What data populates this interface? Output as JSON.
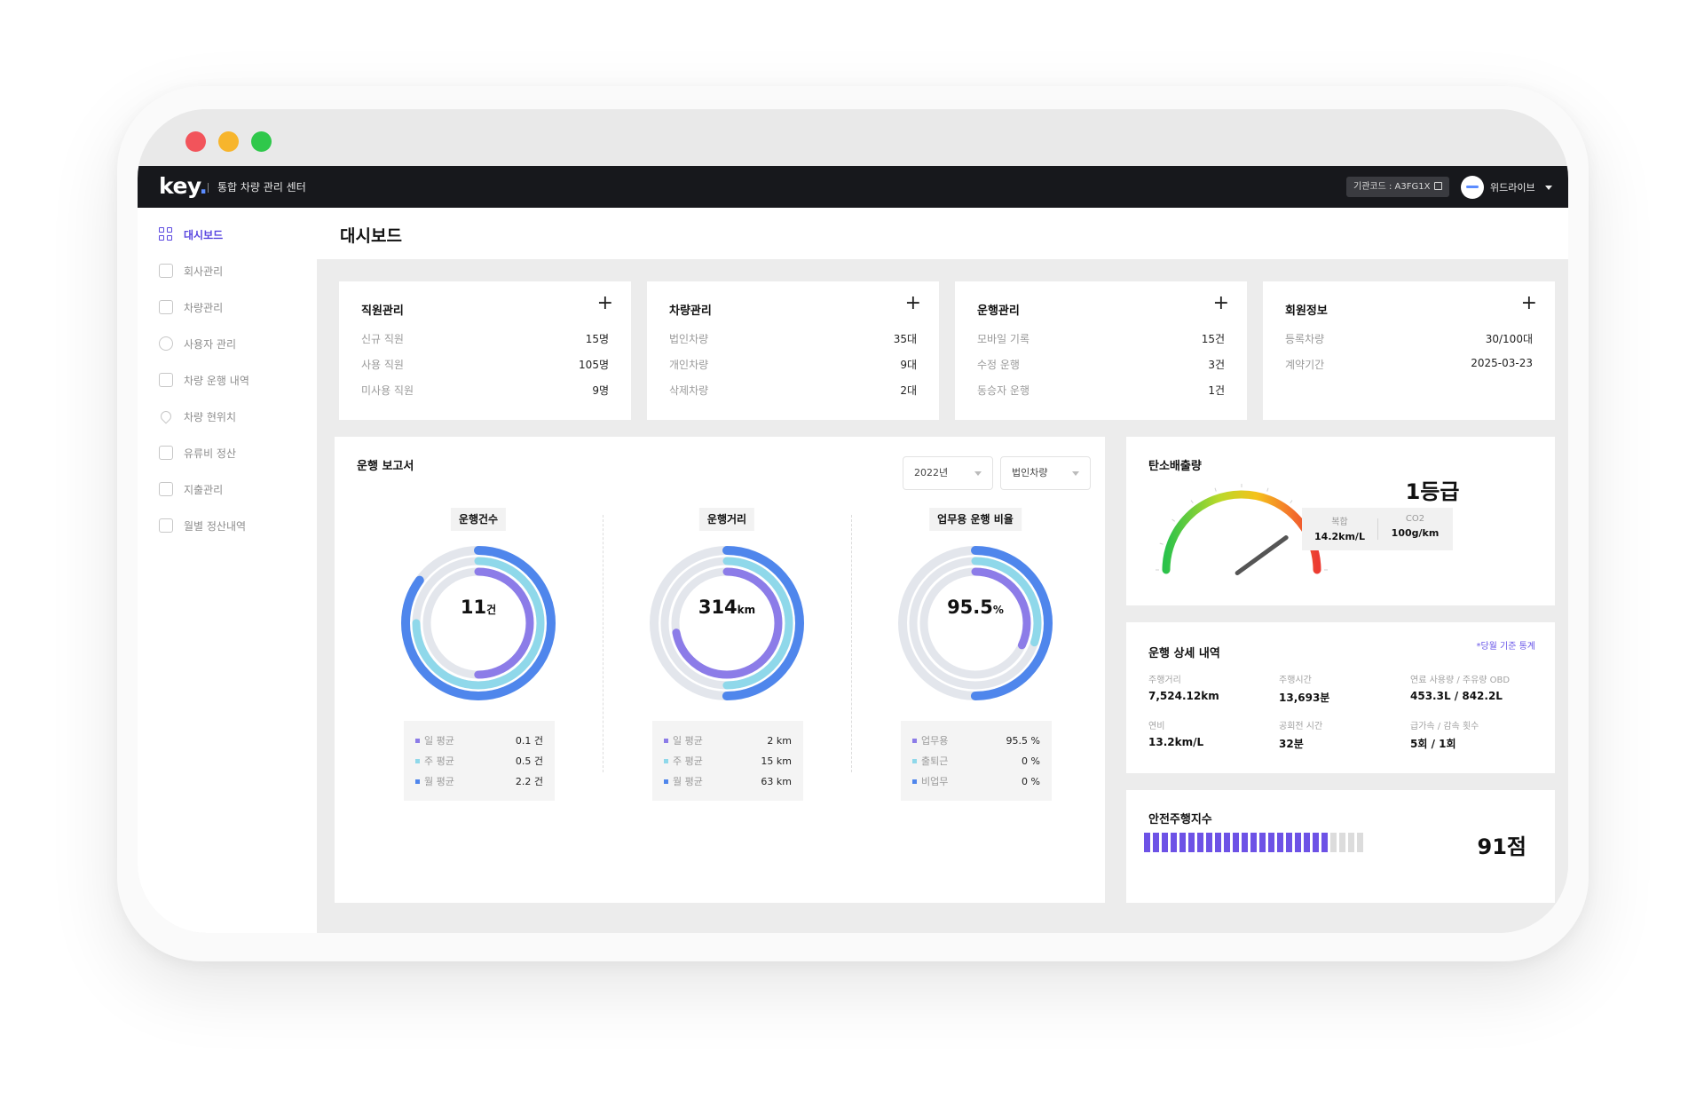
{
  "app": {
    "logo": "key",
    "title": "통합 차량 관리 센터",
    "org_code": "기관코드 : A3FG1X",
    "user_name": "위드라이브"
  },
  "sidebar": {
    "items": [
      {
        "label": "대시보드",
        "icon": "dashboard-icon",
        "active": true
      },
      {
        "label": "회사관리",
        "icon": "building-icon"
      },
      {
        "label": "차량관리",
        "icon": "car-icon"
      },
      {
        "label": "사용자 관리",
        "icon": "users-icon"
      },
      {
        "label": "차량 운행 내역",
        "icon": "clipboard-icon"
      },
      {
        "label": "차량 현위치",
        "icon": "location-pin-icon"
      },
      {
        "label": "유류비 정산",
        "icon": "fuel-icon"
      },
      {
        "label": "지출관리",
        "icon": "receipt-icon"
      },
      {
        "label": "월별 정산내역",
        "icon": "calendar-icon"
      }
    ]
  },
  "page": {
    "title": "대시보드"
  },
  "stat_cards": [
    {
      "title": "직원관리",
      "rows": [
        {
          "k": "신규 직원",
          "v": "15명"
        },
        {
          "k": "사용 직원",
          "v": "105명"
        },
        {
          "k": "미사용 직원",
          "v": "9명"
        }
      ]
    },
    {
      "title": "차량관리",
      "rows": [
        {
          "k": "법인차량",
          "v": "35대"
        },
        {
          "k": "개인차량",
          "v": "9대"
        },
        {
          "k": "삭제차량",
          "v": "2대"
        }
      ]
    },
    {
      "title": "운행관리",
      "rows": [
        {
          "k": "모바일 기록",
          "v": "15건"
        },
        {
          "k": "수정 운행",
          "v": "3건"
        },
        {
          "k": "동승자 운행",
          "v": "1건"
        }
      ]
    },
    {
      "title": "회원정보",
      "rows": [
        {
          "k": "등록차량",
          "v": "30/100대"
        },
        {
          "k": "계약기간",
          "v": "2025-03-23"
        }
      ]
    }
  ],
  "report": {
    "title": "운행 보고서",
    "year_select": "2022년",
    "type_select": "법인차량",
    "donuts": [
      {
        "label": "운행건수",
        "center_value": "11",
        "center_unit": "건",
        "legend": [
          {
            "k": "일 평균",
            "v": "0.1 건"
          },
          {
            "k": "주 평균",
            "v": "0.5 건"
          },
          {
            "k": "월 평균",
            "v": "2.2 건"
          }
        ],
        "fractions": [
          0.5,
          0.75,
          0.85
        ]
      },
      {
        "label": "운행거리",
        "center_value": "314",
        "center_unit": "km",
        "legend": [
          {
            "k": "일 평균",
            "v": "2 km"
          },
          {
            "k": "주 평균",
            "v": "15 km"
          },
          {
            "k": "월 평균",
            "v": "63 km"
          }
        ],
        "fractions": [
          0.72,
          0.5,
          0.5
        ]
      },
      {
        "label": "업무용 운행 비율",
        "center_value": "95.5",
        "center_unit": "%",
        "legend": [
          {
            "k": "업무용",
            "v": "95.5 %"
          },
          {
            "k": "출퇴근",
            "v": "0 %"
          },
          {
            "k": "비업무",
            "v": "0 %"
          }
        ],
        "fractions": [
          0.32,
          0.3,
          0.5
        ]
      }
    ],
    "colors": {
      "daily": "#8c7ce8",
      "weekly": "#8fd8ea",
      "monthly": "#4f86ec",
      "track": "#e3e6ec"
    }
  },
  "carbon": {
    "title": "탄소배출량",
    "grade": "1등급",
    "fuel_label": "복합",
    "fuel_value": "14.2km/L",
    "co2_label": "CO2",
    "co2_value": "100g/km",
    "gauge_level": 0.8
  },
  "detail": {
    "title": "운행 상세 내역",
    "note": "*당월 기준 통계",
    "items": [
      {
        "k": "주행거리",
        "v": "7,524.12km"
      },
      {
        "k": "주행시간",
        "v": "13,693분"
      },
      {
        "k": "연료 사용량 / 주유량 OBD",
        "v": "453.3L / 842.2L"
      },
      {
        "k": "연비",
        "v": "13.2km/L"
      },
      {
        "k": "공회전 시간",
        "v": "32분"
      },
      {
        "k": "급가속 / 감속 횟수",
        "v": "5회 / 1회"
      }
    ]
  },
  "safety": {
    "title": "안전주행지수",
    "score_text": "91점",
    "score": 91,
    "segments_total": 25,
    "segments_on": 21
  }
}
